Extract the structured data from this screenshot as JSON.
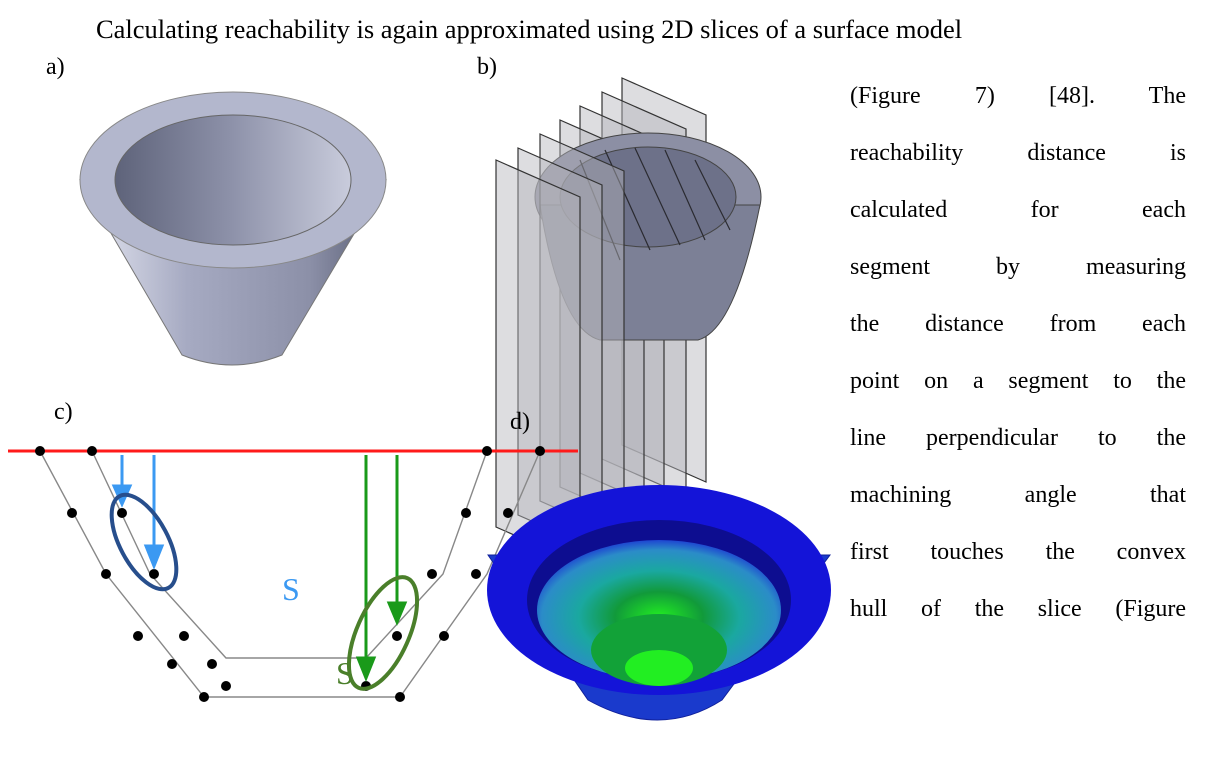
{
  "intro_line": "Calculating reachability is again approximated using 2D slices of a surface model",
  "side_lines": [
    "(Figure 7) [48]. The",
    "reachability distance is",
    "calculated for each",
    "segment by measuring",
    "the distance from each",
    "point on a segment to the",
    "line perpendicular to the",
    "machining angle that",
    "first touches the convex",
    "hull of the slice (Figure"
  ],
  "figure": {
    "panel_labels": [
      "a)",
      "b)",
      "c)",
      "d)"
    ],
    "slice_labels": [
      "S",
      "S"
    ]
  },
  "colors": {
    "part_gray": "#a9adc6",
    "slice_gray": "#9a9aa0",
    "reference_line": "#ff1a1a",
    "arrow_blue": "#3b99f2",
    "ellipse_blue": "#274e8c",
    "arrow_green": "#1a9a1a",
    "ellipse_green": "#4a7f2a",
    "heatmap_blue": "#1414d8",
    "heatmap_green": "#22dd22"
  }
}
